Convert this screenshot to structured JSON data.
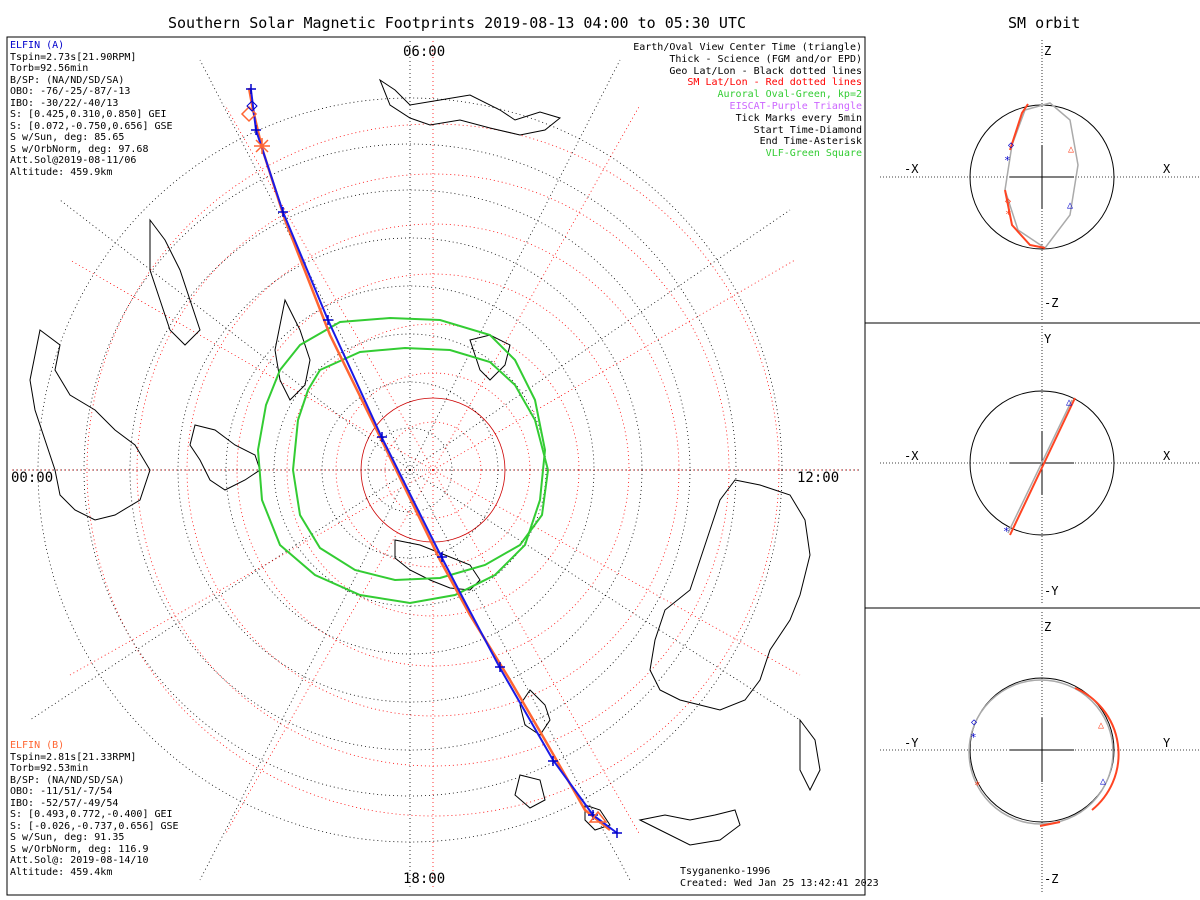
{
  "title": "Southern Solar Magnetic Footprints 2019-08-13 04:00 to 05:30 UTC",
  "orbit_title": "SM orbit",
  "elfin_a": {
    "lines": [
      "ELFIN (A)",
      "Tspin=2.73s[21.90RPM]",
      "Torb=92.56min",
      "B/SP: (NA/ND/SD/SA)",
      "OBO: -76/-25/-87/-13",
      "IBO: -30/22/-40/13",
      "S: [0.425,0.310,0.850] GEI",
      "S: [0.072,-0.750,0.656] GSE",
      "S w/Sun, deg: 85.65",
      "S w/OrbNorm, deg: 97.68",
      "Att.Sol@2019-08-11/06",
      "Altitude: 459.9km"
    ],
    "color": "#0000cc"
  },
  "elfin_b": {
    "lines": [
      "ELFIN (B)",
      "Tspin=2.81s[21.33RPM]",
      "Torb=92.53min",
      "B/SP: (NA/ND/SD/SA)",
      "OBO: -11/51/-7/54",
      "IBO: -52/57/-49/54",
      "S: [0.493,0.772,-0.400] GEI",
      "S: [-0.026,-0.737,0.656] GSE",
      "S w/Sun, deg: 91.35",
      "S w/OrbNorm, deg: 116.9",
      "Att.Sol@: 2019-08-14/10",
      "Altitude: 459.4km"
    ],
    "color": "#ff6633"
  },
  "legend": [
    {
      "text": "Earth/Oval View Center Time (triangle)",
      "color": "#000000"
    },
    {
      "text": "Thick - Science (FGM and/or EPD)",
      "color": "#000000"
    },
    {
      "text": "Geo Lat/Lon - Black dotted lines",
      "color": "#000000"
    },
    {
      "text": "SM Lat/Lon - Red dotted lines",
      "color": "#ff0000"
    },
    {
      "text": "Auroral Oval-Green, kp=2",
      "color": "#33cc33"
    },
    {
      "text": "EISCAT-Purple Triangle",
      "color": "#cc66ff"
    },
    {
      "text": "Tick Marks every 5min",
      "color": "#000000"
    },
    {
      "text": "Start Time-Diamond",
      "color": "#000000"
    },
    {
      "text": "End Time-Asterisk",
      "color": "#000000"
    },
    {
      "text": "VLF-Green Square",
      "color": "#33cc33"
    }
  ],
  "time_labels": {
    "top": "06:00",
    "left": "00:00",
    "right": "12:00",
    "bottom": "18:00"
  },
  "footer": {
    "model": "Tsyganenko-1996",
    "created": "Created: Wed Jan 25 13:42:41 2023"
  },
  "panels": [
    {
      "top": "Z",
      "bottom": "-Z",
      "left": "-X",
      "right": "X"
    },
    {
      "top": "Y",
      "bottom": "-Y",
      "left": "-X",
      "right": "X"
    },
    {
      "top": "Z",
      "bottom": "-Z",
      "left": "-Y",
      "right": "Y"
    }
  ]
}
